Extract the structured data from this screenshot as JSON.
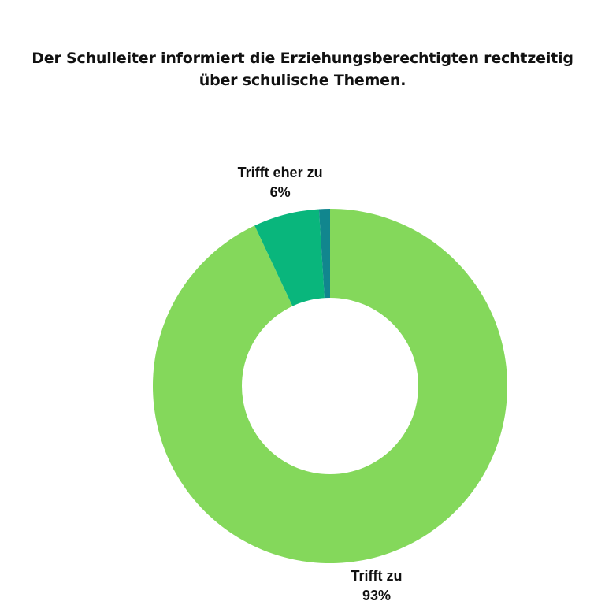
{
  "chart_data": {
    "type": "pie",
    "variant": "donut",
    "title_lines": [
      "Der Schulleiter informiert die Erziehungsberechtigten rechtzeitig",
      "über schulische Themen."
    ],
    "slices": [
      {
        "label": "Trifft zu",
        "value": 93,
        "display": "93%",
        "color": "#84d85b"
      },
      {
        "label": "Trifft eher zu",
        "value": 6,
        "display": "6%",
        "color": "#09b67c"
      },
      {
        "label": "",
        "value": 1,
        "display": "",
        "color": "#11868e"
      }
    ],
    "legend": "none"
  }
}
